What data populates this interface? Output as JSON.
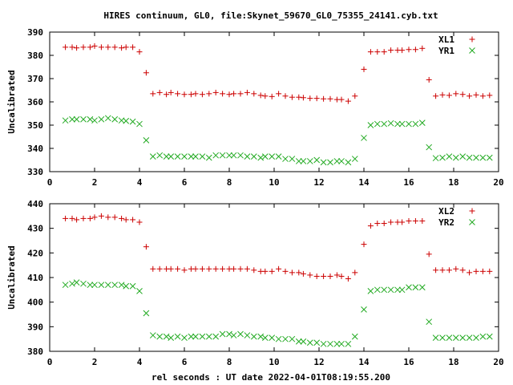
{
  "figure": {
    "title": "HIRES continuum, GL0, file:Skynet_59670_GL0_75355_24141.cyb.txt",
    "xlabel": "rel seconds : UT date 2022-04-01T08:19:55.200"
  },
  "colors": {
    "series1": "#cc0000",
    "series2": "#22aa22",
    "axis": "#000000"
  },
  "chart_data": [
    {
      "type": "scatter",
      "ylabel": "Uncalibrated",
      "xlim": [
        0,
        20
      ],
      "ylim": [
        330,
        390
      ],
      "xticks": [
        0,
        2,
        4,
        6,
        8,
        10,
        12,
        14,
        16,
        18,
        20
      ],
      "yticks": [
        330,
        340,
        350,
        360,
        370,
        380,
        390
      ],
      "legend_position": "top-right",
      "series": [
        {
          "name": "XL1",
          "marker": "plus",
          "color": "#cc0000",
          "x": [
            0.7,
            1.0,
            1.2,
            1.5,
            1.8,
            2.0,
            2.3,
            2.6,
            2.9,
            3.2,
            3.4,
            3.7,
            4.0,
            4.3,
            4.6,
            4.9,
            5.2,
            5.4,
            5.7,
            6.0,
            6.3,
            6.5,
            6.8,
            7.1,
            7.4,
            7.7,
            8.0,
            8.2,
            8.5,
            8.8,
            9.1,
            9.4,
            9.6,
            9.9,
            10.2,
            10.5,
            10.8,
            11.1,
            11.3,
            11.6,
            11.9,
            12.2,
            12.5,
            12.8,
            13.0,
            13.3,
            13.6,
            14.0,
            14.3,
            14.6,
            14.9,
            15.2,
            15.5,
            15.7,
            16.0,
            16.3,
            16.6,
            16.9,
            17.2,
            17.5,
            17.8,
            18.1,
            18.4,
            18.7,
            19.0,
            19.3,
            19.6
          ],
          "y": [
            383.5,
            383.5,
            383.2,
            383.5,
            383.5,
            384.0,
            383.5,
            383.5,
            383.5,
            383.2,
            383.5,
            383.5,
            381.5,
            372.5,
            363.5,
            364.0,
            363.2,
            364.0,
            363.5,
            363.2,
            363.2,
            363.5,
            363.2,
            363.5,
            364.0,
            363.5,
            363.2,
            363.5,
            363.5,
            364.0,
            363.5,
            362.8,
            362.5,
            362.3,
            363.5,
            362.5,
            362.0,
            362.0,
            361.8,
            361.5,
            361.5,
            361.3,
            361.3,
            361.0,
            361.0,
            360.3,
            362.5,
            374.0,
            381.5,
            381.5,
            381.5,
            382.2,
            382.2,
            382.2,
            382.5,
            382.5,
            383.0,
            369.5,
            362.5,
            363.0,
            362.8,
            363.5,
            363.2,
            362.5,
            363.0,
            362.5,
            362.8
          ]
        },
        {
          "name": "YR1",
          "marker": "cross",
          "color": "#22aa22",
          "x": [
            0.7,
            1.0,
            1.2,
            1.5,
            1.8,
            2.0,
            2.3,
            2.6,
            2.9,
            3.2,
            3.4,
            3.7,
            4.0,
            4.3,
            4.6,
            4.9,
            5.2,
            5.4,
            5.7,
            6.0,
            6.3,
            6.5,
            6.8,
            7.1,
            7.4,
            7.7,
            8.0,
            8.2,
            8.5,
            8.8,
            9.1,
            9.4,
            9.6,
            9.9,
            10.2,
            10.5,
            10.8,
            11.1,
            11.3,
            11.6,
            11.9,
            12.2,
            12.5,
            12.8,
            13.0,
            13.3,
            13.6,
            14.0,
            14.3,
            14.6,
            14.9,
            15.2,
            15.5,
            15.7,
            16.0,
            16.3,
            16.6,
            16.9,
            17.2,
            17.5,
            17.8,
            18.1,
            18.4,
            18.7,
            19.0,
            19.3,
            19.6
          ],
          "y": [
            352.0,
            352.5,
            352.5,
            352.5,
            352.5,
            352.0,
            352.5,
            353.0,
            352.5,
            352.0,
            351.8,
            351.5,
            350.5,
            343.5,
            336.5,
            337.0,
            336.5,
            336.5,
            336.5,
            336.5,
            336.5,
            336.5,
            336.5,
            336.0,
            337.0,
            337.0,
            337.0,
            337.0,
            337.0,
            336.5,
            336.5,
            336.0,
            336.5,
            336.5,
            336.5,
            335.5,
            335.5,
            334.5,
            334.5,
            334.5,
            335.0,
            334.0,
            334.0,
            334.5,
            334.5,
            334.0,
            335.5,
            344.5,
            350.0,
            350.5,
            350.5,
            350.8,
            350.5,
            350.5,
            350.5,
            350.5,
            351.0,
            340.5,
            335.8,
            336.0,
            336.5,
            336.0,
            336.5,
            336.0,
            336.0,
            336.0,
            336.0
          ]
        }
      ]
    },
    {
      "type": "scatter",
      "ylabel": "Uncalibrated",
      "xlim": [
        0,
        20
      ],
      "ylim": [
        380,
        440
      ],
      "xticks": [
        0,
        2,
        4,
        6,
        8,
        10,
        12,
        14,
        16,
        18,
        20
      ],
      "yticks": [
        380,
        390,
        400,
        410,
        420,
        430,
        440
      ],
      "legend_position": "top-right",
      "series": [
        {
          "name": "XL2",
          "marker": "plus",
          "color": "#cc0000",
          "x": [
            0.7,
            1.0,
            1.2,
            1.5,
            1.8,
            2.0,
            2.3,
            2.6,
            2.9,
            3.2,
            3.4,
            3.7,
            4.0,
            4.3,
            4.6,
            4.9,
            5.2,
            5.4,
            5.7,
            6.0,
            6.3,
            6.5,
            6.8,
            7.1,
            7.4,
            7.7,
            8.0,
            8.2,
            8.5,
            8.8,
            9.1,
            9.4,
            9.6,
            9.9,
            10.2,
            10.5,
            10.8,
            11.1,
            11.3,
            11.6,
            11.9,
            12.2,
            12.5,
            12.8,
            13.0,
            13.3,
            13.6,
            14.0,
            14.3,
            14.6,
            14.9,
            15.2,
            15.5,
            15.7,
            16.0,
            16.3,
            16.6,
            16.9,
            17.2,
            17.5,
            17.8,
            18.1,
            18.4,
            18.7,
            19.0,
            19.3,
            19.6
          ],
          "y": [
            434.0,
            434.0,
            433.5,
            434.0,
            434.0,
            434.5,
            435.0,
            434.5,
            434.5,
            434.0,
            433.5,
            433.5,
            432.5,
            422.5,
            413.5,
            413.5,
            413.5,
            413.5,
            413.5,
            413.0,
            413.5,
            413.5,
            413.5,
            413.5,
            413.5,
            413.5,
            413.5,
            413.5,
            413.5,
            413.5,
            413.0,
            412.5,
            412.5,
            412.5,
            413.5,
            412.5,
            412.0,
            412.0,
            411.5,
            411.0,
            410.5,
            410.5,
            410.5,
            411.0,
            410.5,
            409.5,
            412.0,
            423.5,
            431.0,
            432.0,
            432.0,
            432.5,
            432.5,
            432.5,
            433.0,
            433.0,
            433.0,
            419.5,
            413.0,
            413.0,
            413.0,
            413.5,
            413.0,
            412.0,
            412.5,
            412.5,
            412.5
          ]
        },
        {
          "name": "YR2",
          "marker": "cross",
          "color": "#22aa22",
          "x": [
            0.7,
            1.0,
            1.2,
            1.5,
            1.8,
            2.0,
            2.3,
            2.6,
            2.9,
            3.2,
            3.4,
            3.7,
            4.0,
            4.3,
            4.6,
            4.9,
            5.2,
            5.4,
            5.7,
            6.0,
            6.3,
            6.5,
            6.8,
            7.1,
            7.4,
            7.7,
            8.0,
            8.2,
            8.5,
            8.8,
            9.1,
            9.4,
            9.6,
            9.9,
            10.2,
            10.5,
            10.8,
            11.1,
            11.3,
            11.6,
            11.9,
            12.2,
            12.5,
            12.8,
            13.0,
            13.3,
            13.6,
            14.0,
            14.3,
            14.6,
            14.9,
            15.2,
            15.5,
            15.7,
            16.0,
            16.3,
            16.6,
            16.9,
            17.2,
            17.5,
            17.8,
            18.1,
            18.4,
            18.7,
            19.0,
            19.3,
            19.6
          ],
          "y": [
            407.0,
            407.5,
            408.0,
            407.5,
            407.0,
            407.0,
            407.0,
            407.0,
            407.0,
            407.0,
            406.5,
            406.5,
            404.5,
            395.5,
            386.5,
            386.0,
            386.0,
            385.5,
            386.0,
            385.5,
            386.0,
            386.0,
            386.0,
            386.0,
            386.0,
            387.0,
            387.0,
            386.5,
            387.0,
            386.5,
            386.0,
            386.0,
            385.5,
            385.5,
            385.0,
            385.0,
            385.0,
            384.0,
            384.0,
            383.5,
            383.5,
            383.0,
            383.0,
            383.0,
            383.0,
            383.0,
            386.0,
            397.0,
            404.5,
            405.0,
            405.0,
            405.0,
            405.0,
            405.0,
            406.0,
            406.0,
            406.0,
            392.0,
            385.5,
            385.5,
            385.5,
            385.5,
            385.5,
            385.5,
            385.5,
            386.0,
            386.0
          ]
        }
      ]
    }
  ]
}
